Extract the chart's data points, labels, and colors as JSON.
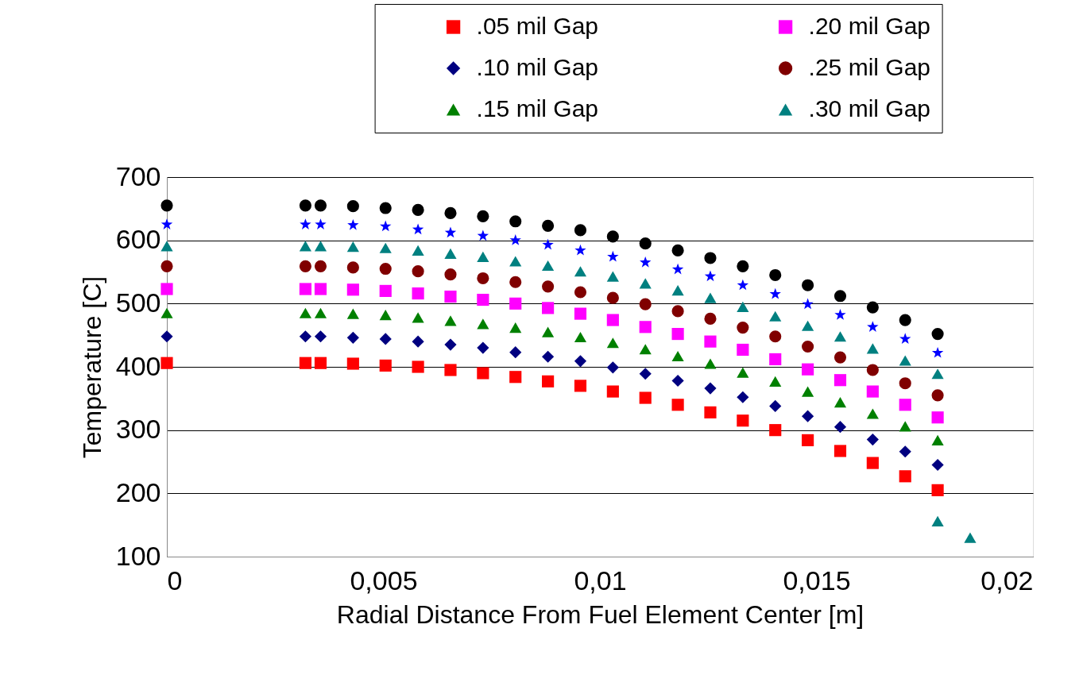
{
  "chart_data": {
    "type": "scatter",
    "xlabel": "Radial Distance From Fuel Element Center [m]",
    "ylabel": "Temperature [C]",
    "x": [
      0,
      0.0032,
      0.00355,
      0.0043,
      0.00505,
      0.0058,
      0.00655,
      0.0073,
      0.00805,
      0.0088,
      0.00955,
      0.0103,
      0.01105,
      0.0118,
      0.01255,
      0.0133,
      0.01405,
      0.0148,
      0.01555,
      0.0163,
      0.01705,
      0.0178,
      0.0178,
      0.01855
    ],
    "series": [
      {
        "name": ".05 mil Gap",
        "color": "#ff0000",
        "marker": "square",
        "values": [
          406,
          406,
          406,
          405,
          402,
          400,
          395,
          390,
          384,
          377,
          370,
          361,
          351,
          340,
          328,
          315,
          300,
          284,
          267,
          248,
          227,
          205,
          null,
          null
        ]
      },
      {
        "name": ".10 mil Gap",
        "color": "#000080",
        "marker": "diamond",
        "values": [
          448,
          448,
          448,
          446,
          444,
          440,
          435,
          430,
          423,
          416,
          409,
          399,
          389,
          378,
          366,
          352,
          338,
          322,
          305,
          285,
          266,
          245,
          null,
          null
        ]
      },
      {
        "name": ".15 mil Gap",
        "color": "#008000",
        "marker": "triangle",
        "values": [
          485,
          485,
          485,
          484,
          482,
          478,
          473,
          468,
          462,
          455,
          447,
          438,
          428,
          417,
          405,
          391,
          377,
          361,
          344,
          326,
          306,
          284,
          null,
          null
        ]
      },
      {
        "name": ".20 mil Gap",
        "color": "#ff00ff",
        "marker": "square",
        "values": [
          523,
          523,
          523,
          522,
          520,
          516,
          511,
          506,
          500,
          493,
          484,
          474,
          463,
          452,
          440,
          427,
          412,
          396,
          379,
          361,
          340,
          320,
          null,
          null
        ]
      },
      {
        "name": ".25 mil Gap",
        "color": "#800000",
        "marker": "circle",
        "values": [
          559,
          559,
          559,
          557,
          555,
          551,
          546,
          540,
          534,
          527,
          518,
          509,
          499,
          488,
          476,
          462,
          448,
          432,
          415,
          395,
          374,
          355,
          null,
          null
        ]
      },
      {
        "name": ".30 mil Gap",
        "color": "#008080",
        "marker": "triangle",
        "values": [
          591,
          591,
          591,
          590,
          588,
          584,
          579,
          574,
          567,
          560,
          551,
          543,
          532,
          521,
          509,
          495,
          480,
          465,
          448,
          429,
          410,
          389,
          156,
          130
        ]
      },
      {
        "color": "#0000ff",
        "marker": "star",
        "values": [
          625,
          625,
          625,
          624,
          622,
          617,
          612,
          607,
          600,
          593,
          584,
          574,
          565,
          554,
          543,
          529,
          515,
          499,
          482,
          463,
          444,
          422,
          null,
          null
        ]
      },
      {
        "color": "#000000",
        "marker": "circle",
        "values": [
          655,
          655,
          655,
          654,
          651,
          648,
          643,
          638,
          630,
          623,
          616,
          606,
          595,
          584,
          572,
          559,
          545,
          529,
          512,
          494,
          474,
          452,
          null,
          null
        ]
      }
    ],
    "xlim": [
      0,
      0.02
    ],
    "xticks": [
      0,
      {
        "value": 0.005,
        "label": "0,005"
      },
      {
        "value": 0.01,
        "label": "0,01"
      },
      {
        "value": 0.015,
        "label": "0,015"
      },
      {
        "value": 0.02,
        "label": "0,02"
      }
    ],
    "ylim": [
      100,
      700
    ],
    "yticks": [
      100,
      200,
      300,
      400,
      500,
      600,
      700
    ],
    "grid": "y",
    "legend": "top right"
  }
}
